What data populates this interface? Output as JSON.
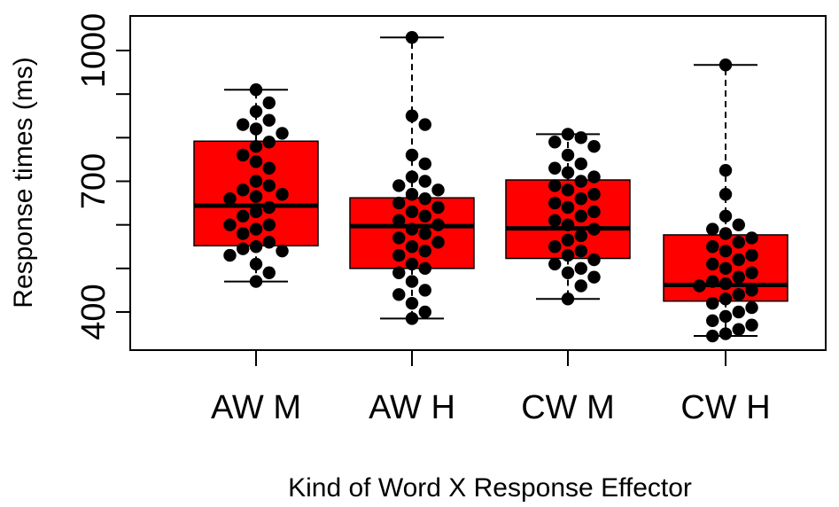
{
  "chart_data": {
    "type": "box",
    "title": "",
    "xlabel": "Kind of Word X Response Effector",
    "ylabel": "Response times (ms)",
    "ylim": [
      330,
      1040
    ],
    "yticks": [
      400,
      700,
      1000
    ],
    "yticks_minor": [
      500,
      600,
      800,
      900
    ],
    "grid": false,
    "box_color": "#ff0000",
    "point_color": "#000000",
    "categories": [
      "AW M",
      "AW H",
      "CW M",
      "CW H"
    ],
    "boxes": [
      {
        "category": "AW M",
        "min": 470,
        "q1": 552,
        "median": 644,
        "q3": 792,
        "max": 910
      },
      {
        "category": "AW H",
        "min": 385,
        "q1": 500,
        "median": 597,
        "q3": 662,
        "max": 1030
      },
      {
        "category": "CW M",
        "min": 430,
        "q1": 523,
        "median": 592,
        "q3": 703,
        "max": 808
      },
      {
        "category": "CW H",
        "min": 345,
        "q1": 425,
        "median": 462,
        "q3": 577,
        "max": 967
      }
    ],
    "points": [
      {
        "category": "AW M",
        "values": [
          910,
          880,
          860,
          840,
          830,
          820,
          810,
          790,
          780,
          760,
          745,
          730,
          700,
          690,
          680,
          670,
          665,
          660,
          640,
          630,
          620,
          600,
          600,
          590,
          580,
          560,
          550,
          545,
          540,
          530,
          510,
          490,
          470
        ]
      },
      {
        "category": "AW H",
        "values": [
          1030,
          850,
          830,
          760,
          740,
          710,
          700,
          690,
          680,
          670,
          660,
          650,
          640,
          630,
          620,
          610,
          600,
          590,
          580,
          570,
          560,
          550,
          540,
          530,
          510,
          500,
          490,
          470,
          450,
          440,
          420,
          400,
          385
        ]
      },
      {
        "category": "CW M",
        "values": [
          808,
          800,
          790,
          780,
          760,
          740,
          730,
          720,
          710,
          700,
          690,
          680,
          670,
          660,
          650,
          640,
          630,
          620,
          610,
          600,
          590,
          575,
          565,
          550,
          540,
          530,
          520,
          510,
          500,
          490,
          480,
          460,
          430
        ]
      },
      {
        "category": "CW H",
        "values": [
          967,
          725,
          670,
          620,
          600,
          590,
          580,
          570,
          560,
          550,
          540,
          530,
          520,
          510,
          500,
          490,
          480,
          470,
          465,
          460,
          450,
          440,
          430,
          420,
          410,
          400,
          390,
          380,
          370,
          360,
          350,
          345
        ]
      }
    ]
  }
}
